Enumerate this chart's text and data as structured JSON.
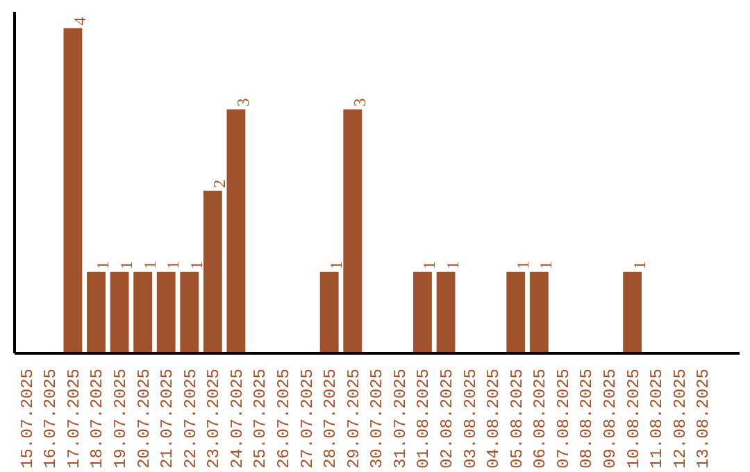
{
  "chart_data": {
    "type": "bar",
    "categories": [
      "15.07.2025",
      "16.07.2025",
      "17.07.2025",
      "18.07.2025",
      "19.07.2025",
      "20.07.2025",
      "21.07.2025",
      "22.07.2025",
      "23.07.2025",
      "24.07.2025",
      "25.07.2025",
      "26.07.2025",
      "27.07.2025",
      "28.07.2025",
      "29.07.2025",
      "30.07.2025",
      "31.07.2025",
      "01.08.2025",
      "02.08.2025",
      "03.08.2025",
      "04.08.2025",
      "05.08.2025",
      "06.08.2025",
      "07.08.2025",
      "08.08.2025",
      "09.08.2025",
      "10.08.2025",
      "11.08.2025",
      "12.08.2025",
      "13.08.2025"
    ],
    "values": [
      0,
      0,
      4,
      1,
      1,
      1,
      1,
      1,
      2,
      3,
      0,
      0,
      0,
      1,
      3,
      0,
      0,
      1,
      1,
      0,
      0,
      1,
      1,
      0,
      0,
      0,
      1,
      0,
      0,
      0
    ],
    "value_labels": [
      null,
      null,
      "4",
      "1",
      "1",
      "1",
      "1",
      "1",
      "2",
      "3",
      null,
      null,
      null,
      "1",
      "3",
      null,
      null,
      "1",
      "1",
      null,
      null,
      "1",
      "1",
      null,
      null,
      null,
      "1",
      null,
      null,
      null
    ],
    "color": "#a0522d",
    "ylim": [
      0,
      4.2
    ],
    "grid": false,
    "tick_labels": "x"
  }
}
